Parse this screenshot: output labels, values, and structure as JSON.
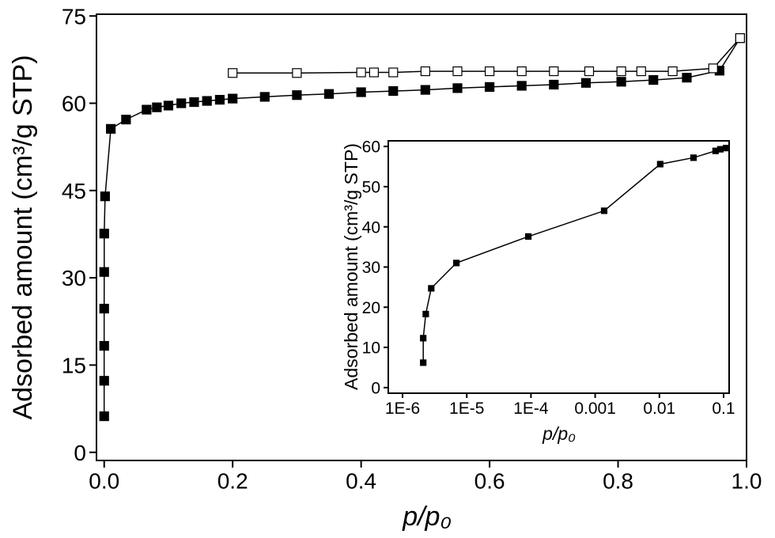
{
  "chart_data": [
    {
      "type": "line",
      "marker": "square",
      "xlabel": "p/p₀",
      "ylabel": "Adsorbed amount (cm³/g STP)",
      "xlim": [
        -0.012,
        1.0
      ],
      "ylim": [
        -1.4,
        75.3
      ],
      "xticks": [
        {
          "value": 0,
          "label": "0.0"
        },
        0.2,
        0.4,
        0.6,
        0.8,
        {
          "value": 1,
          "label": "1.0"
        }
      ],
      "yticks": [
        0,
        15,
        30,
        45,
        60,
        75
      ],
      "series": [
        {
          "color": "#000000",
          "marker_fill": "#000000",
          "x": [
            2.1e-06,
            2.1e-06,
            2.3e-06,
            2.8e-06,
            6.9e-06,
            9.1e-05,
            0.00138,
            0.0103,
            0.034,
            0.066,
            0.082,
            0.1,
            0.12,
            0.14,
            0.16,
            0.18,
            0.2,
            0.25,
            0.3,
            0.35,
            0.4,
            0.45,
            0.5,
            0.55,
            0.6,
            0.65,
            0.7,
            0.75,
            0.805,
            0.855,
            0.907,
            0.958,
            0.99
          ],
          "values": [
            6.2,
            12.3,
            18.3,
            24.7,
            31.0,
            37.6,
            44.0,
            55.6,
            57.2,
            58.9,
            59.3,
            59.6,
            60.0,
            60.2,
            60.4,
            60.6,
            60.8,
            61.1,
            61.4,
            61.6,
            61.9,
            62.1,
            62.3,
            62.6,
            62.8,
            63.0,
            63.2,
            63.5,
            63.7,
            64.0,
            64.4,
            65.6,
            71.2
          ]
        },
        {
          "color": "#000000",
          "marker_fill": "#ffffff",
          "x": [
            0.99,
            0.948,
            0.885,
            0.836,
            0.805,
            0.755,
            0.7,
            0.65,
            0.6,
            0.55,
            0.5,
            0.45,
            0.42,
            0.4,
            0.3,
            0.2
          ],
          "values": [
            71.2,
            66.0,
            65.5,
            65.5,
            65.5,
            65.5,
            65.5,
            65.5,
            65.5,
            65.5,
            65.5,
            65.3,
            65.3,
            65.3,
            65.2,
            65.2
          ]
        }
      ]
    },
    {
      "type": "line",
      "marker": "square",
      "xscale": "log",
      "xlabel": "p/p₀",
      "ylabel": "Adsorbed amount (cm³/g STP)",
      "xlim": [
        6e-07,
        0.122
      ],
      "ylim": [
        -1.4,
        61.4
      ],
      "xticks": [
        {
          "value": 1e-06,
          "label": "1E-6"
        },
        {
          "value": 1e-05,
          "label": "1E-5"
        },
        {
          "value": 0.0001,
          "label": "1E-4"
        },
        0.001,
        0.01,
        0.1
      ],
      "yticks": [
        0,
        10,
        20,
        30,
        40,
        50,
        60
      ],
      "series": [
        {
          "color": "#000000",
          "marker_fill": "#000000",
          "x": [
            2.1e-06,
            2.1e-06,
            2.3e-06,
            2.8e-06,
            6.9e-06,
            9.1e-05,
            0.00138,
            0.0103,
            0.034,
            0.075,
            0.089,
            0.109
          ],
          "values": [
            6.2,
            12.3,
            18.3,
            24.7,
            31.0,
            37.6,
            44.0,
            55.6,
            57.2,
            58.9,
            59.3,
            59.6
          ]
        }
      ]
    }
  ]
}
